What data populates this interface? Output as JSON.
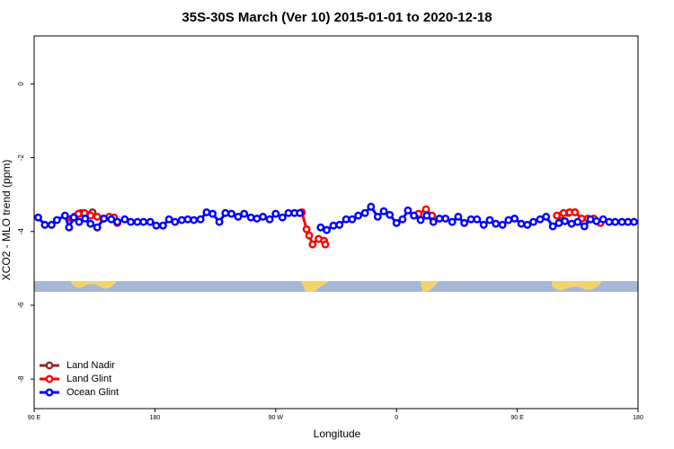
{
  "chart_data": {
    "type": "line",
    "title": "35S-30S March (Ver 10)   2015-01-01 to 2020-12-18",
    "xlabel": "Longitude",
    "ylabel": "XCO2 - MLO trend (ppm)",
    "xlim": [
      90,
      540
    ],
    "ylim": [
      -8.8,
      1.3
    ],
    "xticks": [
      {
        "value": 90,
        "label": "90 E"
      },
      180,
      {
        "value": 270,
        "label": "90 W"
      },
      {
        "value": 360,
        "label": "0"
      },
      {
        "value": 450,
        "label": "90 E"
      },
      {
        "value": 540,
        "label": "180"
      }
    ],
    "yticks": [
      0,
      -2,
      -4,
      -6,
      -8
    ],
    "legend": "bottom-left",
    "series": [
      {
        "name": "Land Nadir",
        "color": "#8b2a2a",
        "x": [
          120,
          125,
          133.5,
          null,
          482,
          488,
          493
        ],
        "values": [
          -3.6,
          -3.5,
          -3.48,
          null,
          -3.57,
          -3.5,
          -3.48
        ]
      },
      {
        "name": "Land Glint",
        "color": "#ff0000",
        "x": [
          118,
          123,
          127.5,
          132,
          137,
          141.5,
          146,
          149.5,
          152,
          null,
          289.5,
          293,
          295,
          297.5,
          302,
          306,
          307,
          null,
          376.5,
          382,
          386.5,
          null,
          479.5,
          484.5,
          489,
          493,
          498,
          502.5,
          507,
          512
        ],
        "values": [
          -3.65,
          -3.52,
          -3.5,
          -3.57,
          -3.6,
          -3.65,
          -3.6,
          -3.62,
          -3.77,
          null,
          -3.48,
          -3.94,
          -4.11,
          -4.35,
          -4.2,
          -4.25,
          -4.35,
          null,
          -3.52,
          -3.4,
          -3.57,
          null,
          -3.57,
          -3.5,
          -3.48,
          -3.48,
          -3.65,
          -3.65,
          -3.65,
          -3.77
        ]
      },
      {
        "name": "Ocean Glint",
        "color": "#0000ff",
        "x": [
          93,
          98,
          103,
          107,
          113,
          116,
          119.5,
          123.5,
          128,
          132,
          137,
          142,
          147.5,
          152,
          157.5,
          162,
          167,
          171.5,
          176.5,
          181,
          186,
          190.5,
          195,
          200,
          204.5,
          209,
          214,
          218.5,
          223,
          228,
          232.5,
          237,
          242,
          246.5,
          251.5,
          256,
          260.5,
          265.5,
          270,
          275,
          279.5,
          284,
          288,
          null,
          303.5,
          308,
          313,
          317.5,
          322.5,
          327,
          331.5,
          336.5,
          341,
          346,
          350.5,
          355,
          360,
          364.5,
          368.5,
          373,
          378,
          382.5,
          387.5,
          392,
          396.5,
          401.5,
          406,
          410.5,
          415.5,
          420,
          425,
          429.5,
          434,
          439,
          443.5,
          448,
          453,
          457.5,
          462,
          467,
          471.5,
          476.5,
          481,
          485.5,
          490.5,
          495,
          500,
          504.5,
          509,
          514,
          518.5,
          523,
          528,
          532.5,
          537
        ],
        "values": [
          -3.62,
          -3.82,
          -3.82,
          -3.69,
          -3.57,
          -3.89,
          -3.62,
          -3.74,
          -3.65,
          -3.79,
          -3.89,
          -3.65,
          -3.67,
          -3.74,
          -3.67,
          -3.74,
          -3.74,
          -3.74,
          -3.74,
          -3.84,
          -3.84,
          -3.67,
          -3.74,
          -3.69,
          -3.67,
          -3.69,
          -3.67,
          -3.48,
          -3.52,
          -3.74,
          -3.5,
          -3.52,
          -3.6,
          -3.52,
          -3.62,
          -3.65,
          -3.6,
          -3.67,
          -3.52,
          -3.62,
          -3.5,
          -3.5,
          -3.5,
          null,
          -3.89,
          -3.96,
          -3.84,
          -3.82,
          -3.67,
          -3.67,
          -3.57,
          -3.5,
          -3.33,
          -3.6,
          -3.45,
          -3.55,
          -3.77,
          -3.67,
          -3.43,
          -3.57,
          -3.69,
          -3.57,
          -3.74,
          -3.65,
          -3.65,
          -3.74,
          -3.6,
          -3.77,
          -3.67,
          -3.67,
          -3.82,
          -3.69,
          -3.79,
          -3.82,
          -3.69,
          -3.65,
          -3.79,
          -3.82,
          -3.74,
          -3.67,
          -3.6,
          -3.86,
          -3.77,
          -3.72,
          -3.79,
          -3.74,
          -3.86,
          -3.67,
          -3.72,
          -3.67,
          -3.74,
          -3.74,
          -3.74,
          -3.74,
          -3.74
        ]
      }
    ]
  }
}
